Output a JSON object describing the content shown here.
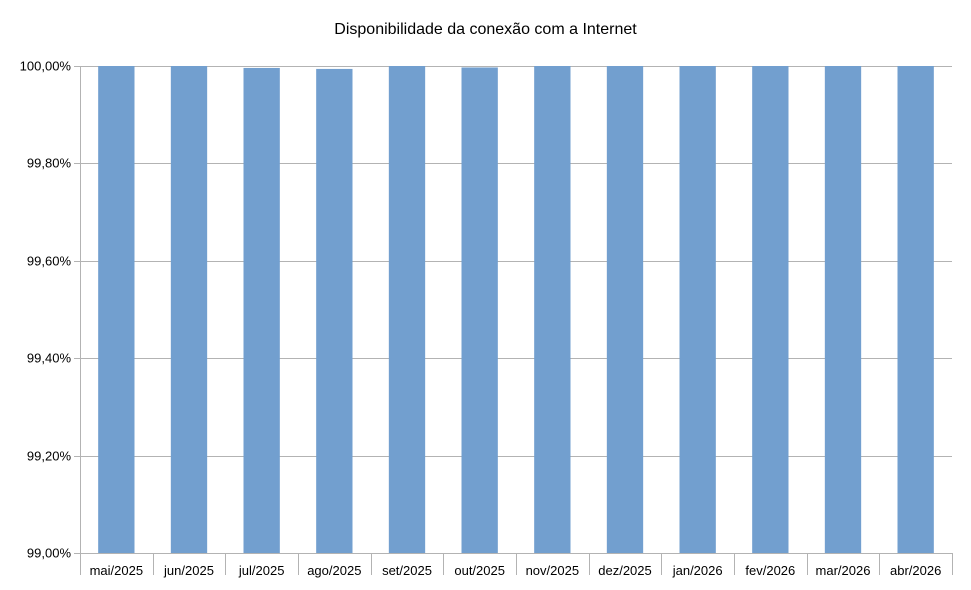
{
  "chart_data": {
    "type": "bar",
    "title": "Disponibilidade da conexão com a Internet",
    "categories": [
      "mai/2025",
      "jun/2025",
      "jul/2025",
      "ago/2025",
      "set/2025",
      "out/2025",
      "nov/2025",
      "dez/2025",
      "jan/2026",
      "fev/2026",
      "mar/2026",
      "abr/2026"
    ],
    "values": [
      100.0,
      100.0,
      99.996,
      99.994,
      100.0,
      99.997,
      100.0,
      100.0,
      100.0,
      100.0,
      100.0,
      100.0
    ],
    "ylim": [
      99.0,
      100.0
    ],
    "yticks": [
      99.0,
      99.2,
      99.4,
      99.6,
      99.8,
      100.0
    ],
    "ytick_labels": [
      "99,00%",
      "99,20%",
      "99,40%",
      "99,60%",
      "99,80%",
      "100,00%"
    ],
    "xlabel": "",
    "ylabel": "",
    "grid": true,
    "legend": "none",
    "colors": {
      "bar": "#729fcf",
      "grid": "#b3b3b3",
      "axis": "#b3b3b3"
    }
  }
}
